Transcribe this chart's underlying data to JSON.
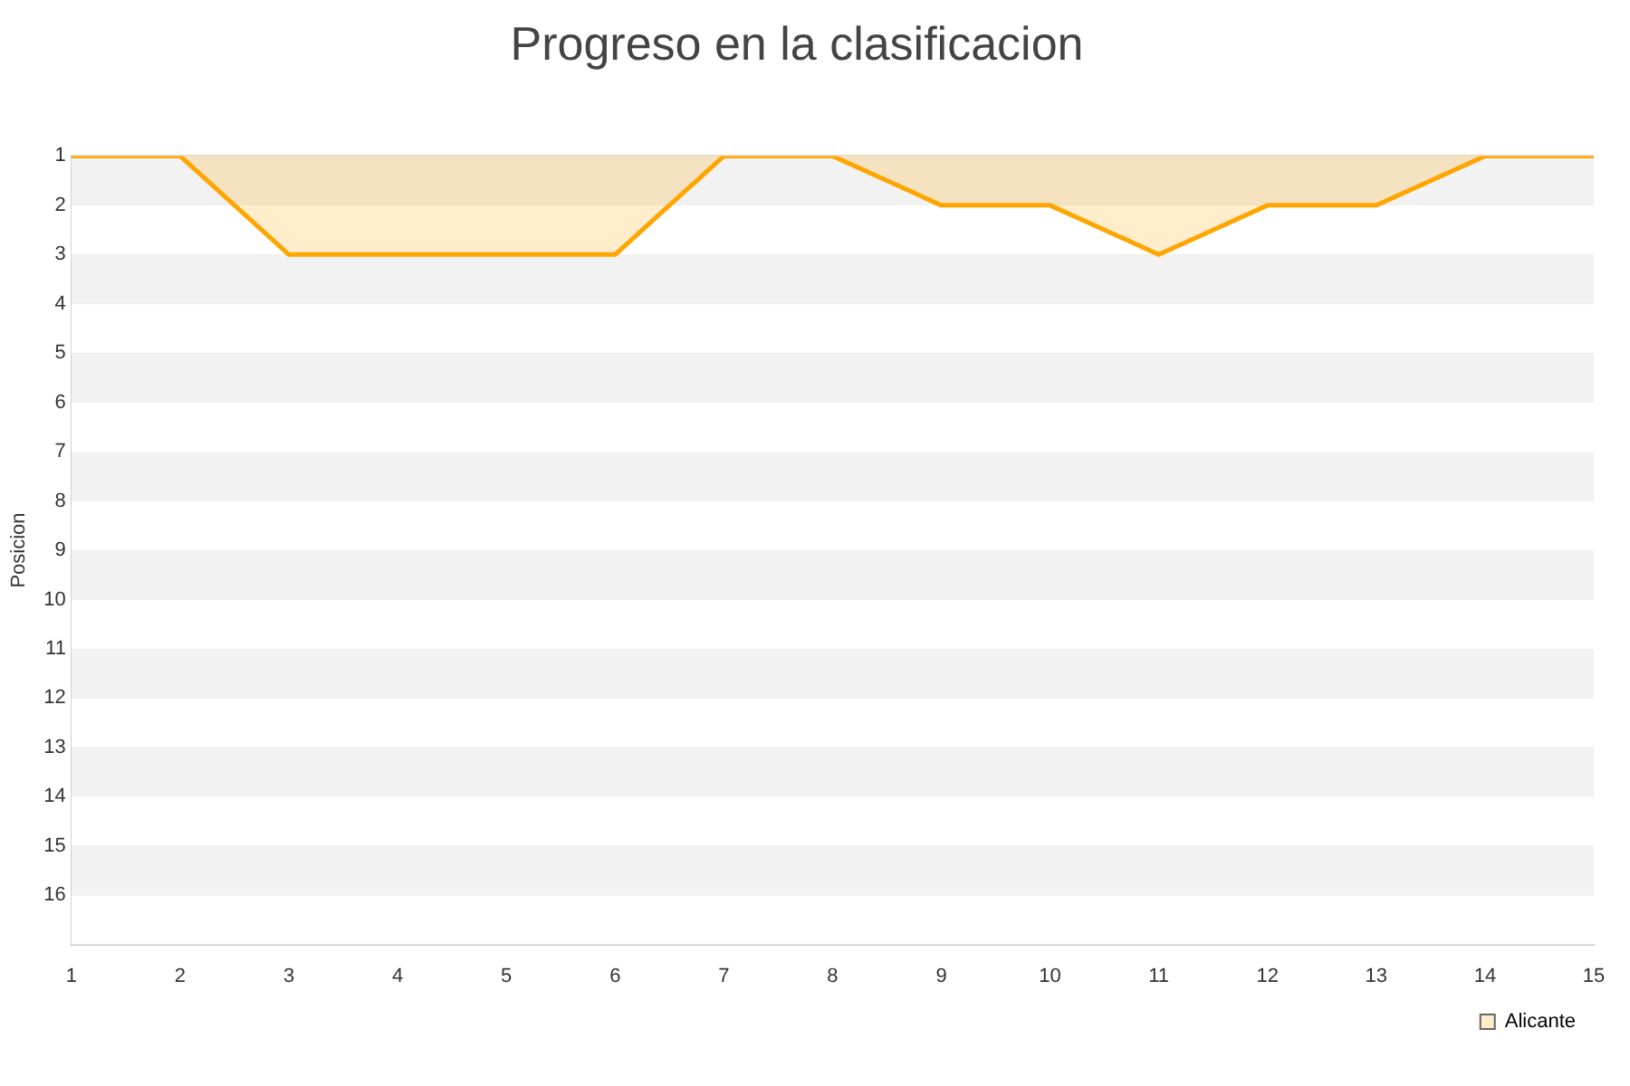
{
  "chart_data": {
    "type": "area",
    "title": "Progreso en la clasificacion",
    "ylabel": "Posicion",
    "x": [
      1,
      2,
      3,
      4,
      5,
      6,
      7,
      8,
      9,
      10,
      11,
      12,
      13,
      14,
      15
    ],
    "series": [
      {
        "name": "Alicante",
        "color": "#ffa500",
        "values": [
          1,
          1,
          3,
          3,
          3,
          3,
          1,
          1,
          2,
          2,
          3,
          2,
          2,
          1,
          1
        ]
      }
    ],
    "xlim": [
      1,
      15
    ],
    "xticks": [
      1,
      2,
      3,
      4,
      5,
      6,
      7,
      8,
      9,
      10,
      11,
      12,
      13,
      14,
      15
    ],
    "ylim": [
      17,
      1
    ],
    "yticks": [
      1,
      2,
      3,
      4,
      5,
      6,
      7,
      8,
      9,
      10,
      11,
      12,
      13,
      14,
      15,
      16
    ],
    "grid": "y",
    "legend": "bottom right",
    "marker": "none",
    "line_style": "solid"
  }
}
